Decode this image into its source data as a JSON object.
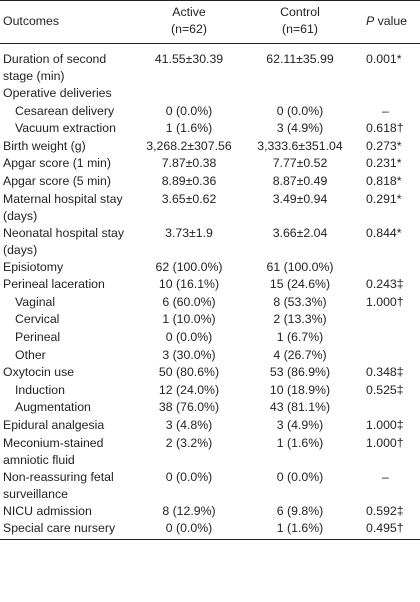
{
  "header": {
    "outcomes": "Outcomes",
    "active_line1": "Active",
    "active_line2": "(n=62)",
    "control_line1": "Control",
    "control_line2": "(n=61)",
    "p_italic": "P",
    "p_rest": " value"
  },
  "rows": [
    {
      "outcome": "Duration of second stage (min)",
      "active": "41.55±30.39",
      "control": "62.11±35.99",
      "p": "0.001*"
    },
    {
      "outcome": "Operative deliveries",
      "active": "",
      "control": "",
      "p": ""
    },
    {
      "outcome": "Cesarean delivery",
      "active": "0 (0.0%)",
      "control": "0 (0.0%)",
      "p": "–"
    },
    {
      "outcome": "Vacuum extraction",
      "active": "1 (1.6%)",
      "control": "3 (4.9%)",
      "p": "0.618†"
    },
    {
      "outcome": "Birth weight (g)",
      "active": "3,268.2±307.56",
      "control": "3,333.6±351.04",
      "p": "0.273*"
    },
    {
      "outcome": "Apgar score (1 min)",
      "active": "7.87±0.38",
      "control": "7.77±0.52",
      "p": "0.231*"
    },
    {
      "outcome": "Apgar score (5 min)",
      "active": "8.89±0.36",
      "control": "8.87±0.49",
      "p": "0.818*"
    },
    {
      "outcome": "Maternal hospital stay (days)",
      "active": "3.65±0.62",
      "control": "3.49±0.94",
      "p": "0.291*"
    },
    {
      "outcome": "Neonatal hospital stay (days)",
      "active": "3.73±1.9",
      "control": "3.66±2.04",
      "p": "0.844*"
    },
    {
      "outcome": "Episiotomy",
      "active": "62 (100.0%)",
      "control": "61 (100.0%)",
      "p": ""
    },
    {
      "outcome": "Perineal laceration",
      "active": "10 (16.1%)",
      "control": "15 (24.6%)",
      "p": "0.243‡"
    },
    {
      "outcome": "Vaginal",
      "active": "6 (60.0%)",
      "control": "8 (53.3%)",
      "p": "1.000†"
    },
    {
      "outcome": "Cervical",
      "active": "1 (10.0%)",
      "control": "2 (13.3%)",
      "p": ""
    },
    {
      "outcome": "Perineal",
      "active": "0 (0.0%)",
      "control": "1 (6.7%)",
      "p": ""
    },
    {
      "outcome": "Other",
      "active": "3 (30.0%)",
      "control": "4 (26.7%)",
      "p": ""
    },
    {
      "outcome": "Oxytocin use",
      "active": "50 (80.6%)",
      "control": "53 (86.9%)",
      "p": "0.348‡"
    },
    {
      "outcome": "Induction",
      "active": "12 (24.0%)",
      "control": "10 (18.9%)",
      "p": "0.525‡"
    },
    {
      "outcome": "Augmentation",
      "active": "38 (76.0%)",
      "control": "43 (81.1%)",
      "p": ""
    },
    {
      "outcome": "Epidural analgesia",
      "active": "3 (4.8%)",
      "control": "3 (4.9%)",
      "p": "1.000‡"
    },
    {
      "outcome": "Meconium-stained amniotic fluid",
      "active": "2 (3.2%)",
      "control": "1 (1.6%)",
      "p": "1.000†"
    },
    {
      "outcome": "Non-reassuring fetal surveillance",
      "active": "0 (0.0%)",
      "control": "0 (0.0%)",
      "p": "–"
    },
    {
      "outcome": "NICU admission",
      "active": "8 (12.9%)",
      "control": "6 (9.8%)",
      "p": "0.592‡"
    },
    {
      "outcome": "Special care nursery",
      "active": "0 (0.0%)",
      "control": "1 (1.6%)",
      "p": "0.495†"
    }
  ]
}
